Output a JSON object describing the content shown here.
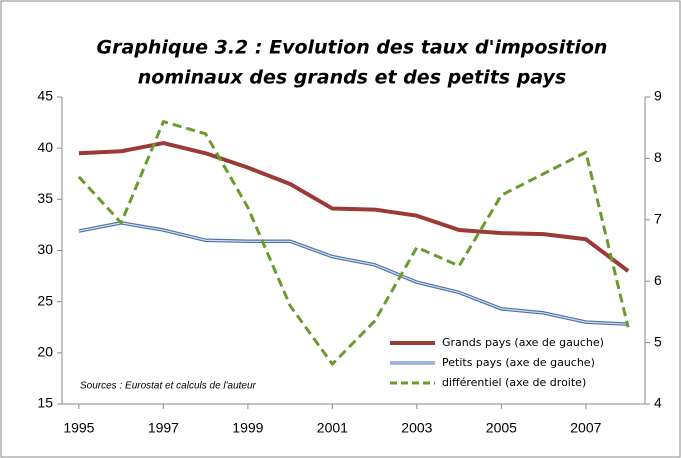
{
  "chart_data": {
    "type": "line",
    "title": [
      "Graphique 3.2 : Evolution des taux d'imposition",
      "nominaux des grands et des petits pays"
    ],
    "annotation": "Sources : Eurostat et calculs de l'auteur",
    "x": [
      1995,
      1996,
      1997,
      1998,
      1999,
      2000,
      2001,
      2002,
      2003,
      2004,
      2005,
      2006,
      2007,
      2008
    ],
    "xlim": [
      1994.6,
      2008.4
    ],
    "xticks": [
      1995,
      1997,
      1999,
      2001,
      2003,
      2005,
      2007
    ],
    "ylim": [
      15,
      45
    ],
    "yticks": [
      15,
      20,
      25,
      30,
      35,
      40,
      45
    ],
    "y2lim": [
      4,
      9
    ],
    "y2ticks": [
      4,
      5,
      6,
      7,
      8,
      9
    ],
    "grid": false,
    "legend": "lower right",
    "series": [
      {
        "name": "Grands pays (axe de gauche)",
        "color": "#9b3a36",
        "style": "solid",
        "axis": "y",
        "values": [
          39.5,
          39.7,
          40.5,
          39.5,
          38.1,
          36.5,
          34.1,
          34.0,
          33.4,
          32.0,
          31.7,
          31.6,
          31.1,
          28.0
        ]
      },
      {
        "name": "Petits pays (axe de gauche)",
        "color": "#4f72a8",
        "style": "double",
        "axis": "y",
        "values": [
          31.9,
          32.7,
          32.0,
          31.0,
          30.9,
          30.9,
          29.4,
          28.6,
          26.9,
          25.9,
          24.3,
          23.9,
          23.0,
          22.8
        ]
      },
      {
        "name": "différentiel (axe de droite)",
        "color": "#6b9a2f",
        "style": "dashed",
        "axis": "y2",
        "values": [
          7.7,
          6.95,
          8.6,
          8.4,
          7.2,
          5.6,
          4.65,
          5.35,
          6.55,
          6.25,
          7.4,
          7.75,
          8.1,
          5.25
        ]
      }
    ]
  }
}
